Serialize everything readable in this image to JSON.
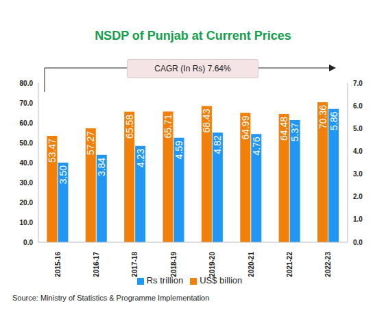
{
  "chart_data": {
    "type": "bar",
    "title": "NSDP of Punjab at Current Prices",
    "annotations": [
      "CAGR (In Rs) 7.64%"
    ],
    "source": "Source: Ministry of Statistics & Programme Implementation",
    "categories": [
      "2015-16",
      "2016-17",
      "2017-18",
      "2018-19",
      "2019-20",
      "2020-21",
      "2021-22",
      "2022-23"
    ],
    "series": [
      {
        "name": "US$ billion",
        "color": "#F0800A",
        "values": [
          53.47,
          57.27,
          65.58,
          65.71,
          68.43,
          64.99,
          64.48,
          70.36
        ]
      },
      {
        "name": "Rs trillion",
        "color": "#2196F3",
        "axis": "y2",
        "values": [
          3.5,
          3.84,
          4.23,
          4.59,
          4.82,
          4.76,
          5.37,
          5.86
        ],
        "value_labels": [
          "3.50",
          "3.84",
          "4.23",
          "4.59",
          "4.82",
          "4.76",
          "5.37",
          "5.86"
        ]
      }
    ],
    "ylim": [
      0,
      80
    ],
    "yticks": [
      {
        "value": 0,
        "label": "0.0"
      },
      {
        "value": 10,
        "label": "10.0"
      },
      {
        "value": 20,
        "label": "20.0"
      },
      {
        "value": 30,
        "label": "30.0"
      },
      {
        "value": 40,
        "label": "40.0"
      },
      {
        "value": 50,
        "label": "50.0"
      },
      {
        "value": 60,
        "label": "60.0"
      },
      {
        "value": 70,
        "label": "70.0"
      },
      {
        "value": 80,
        "label": "80.0"
      }
    ],
    "y2lim": [
      0,
      7
    ],
    "y2ticks": [
      {
        "value": 0,
        "label": "0.0"
      },
      {
        "value": 1,
        "label": "1.0"
      },
      {
        "value": 2,
        "label": "2.0"
      },
      {
        "value": 3,
        "label": "3.0"
      },
      {
        "value": 4,
        "label": "4.0"
      },
      {
        "value": 5,
        "label": "5.0"
      },
      {
        "value": 6,
        "label": "6.0"
      },
      {
        "value": 7,
        "label": "7.0"
      }
    ],
    "data_labels": true,
    "legend": "bottom",
    "grid": false
  }
}
